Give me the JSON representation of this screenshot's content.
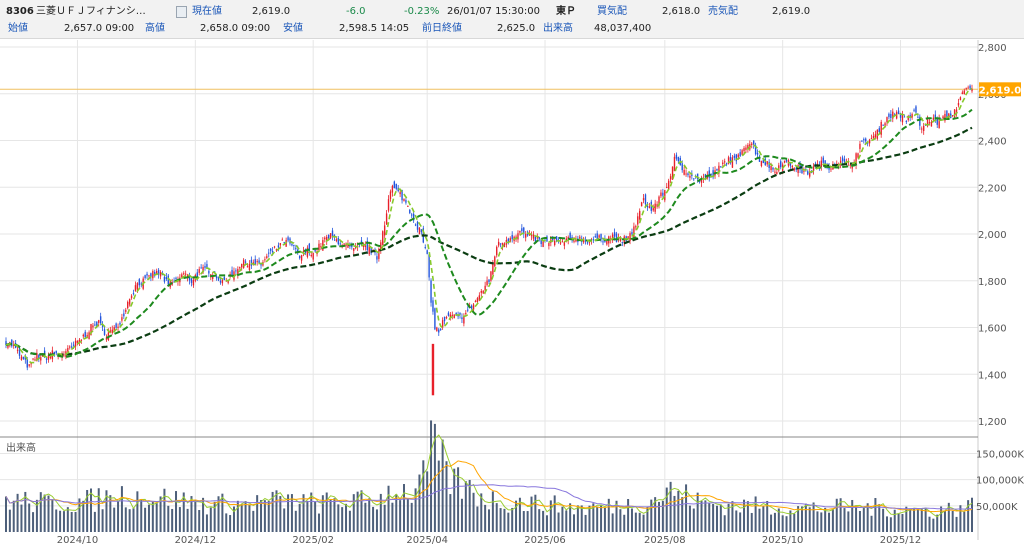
{
  "header": {
    "code": "8306",
    "name": "三菱ＵＦＪフィナンシ…",
    "current_label": "現在値",
    "current_value": "2,619.0",
    "change": "-6.0",
    "change_pct": "-0.23%",
    "datetime": "26/01/07  15:30:00",
    "market": "東Ｐ",
    "bid_label": "買気配",
    "bid_value": "2,618.0",
    "ask_label": "売気配",
    "ask_value": "2,619.0",
    "open_label": "始値",
    "open_value": "2,657.0  09:00",
    "high_label": "高値",
    "high_value": "2,658.0  09:00",
    "low_label": "安値",
    "low_value": "2,598.5  14:05",
    "prev_close_label": "前日終値",
    "prev_close_value": "2,625.0",
    "volume_label": "出来高",
    "volume_value": "48,037,400"
  },
  "chart_data": {
    "type": "candlestick",
    "price_axis": {
      "ylim": [
        1200,
        2800
      ],
      "ticks": [
        "1,200",
        "1,400",
        "1,600",
        "1,800",
        "2,000",
        "2,200",
        "2,400",
        "2,600",
        "2,800"
      ]
    },
    "current_price_label": "2,619.0",
    "current_price": 2619,
    "volume_panel_title": "出来高",
    "volume_axis": {
      "ylim": [
        0,
        170000
      ],
      "ticks": [
        "50,000K",
        "100,000K",
        "150,000K"
      ]
    },
    "x_tick_labels": [
      "2024/10",
      "2024/12",
      "2025/02",
      "2025/04",
      "2025/06",
      "2025/08",
      "2025/10",
      "2025/12"
    ],
    "x_tick_days": [
      37,
      98,
      159,
      218,
      279,
      341,
      402,
      463
    ],
    "last_day": 500,
    "price_anchors": [
      [
        0,
        1540
      ],
      [
        4,
        1520
      ],
      [
        8,
        1470
      ],
      [
        12,
        1430
      ],
      [
        16,
        1480
      ],
      [
        20,
        1470
      ],
      [
        24,
        1490
      ],
      [
        28,
        1480
      ],
      [
        32,
        1500
      ],
      [
        36,
        1530
      ],
      [
        40,
        1560
      ],
      [
        44,
        1600
      ],
      [
        48,
        1620
      ],
      [
        52,
        1570
      ],
      [
        56,
        1590
      ],
      [
        60,
        1640
      ],
      [
        64,
        1730
      ],
      [
        68,
        1790
      ],
      [
        72,
        1800
      ],
      [
        76,
        1830
      ],
      [
        80,
        1830
      ],
      [
        84,
        1780
      ],
      [
        88,
        1800
      ],
      [
        92,
        1830
      ],
      [
        96,
        1800
      ],
      [
        100,
        1840
      ],
      [
        104,
        1850
      ],
      [
        108,
        1830
      ],
      [
        112,
        1790
      ],
      [
        116,
        1820
      ],
      [
        120,
        1860
      ],
      [
        124,
        1880
      ],
      [
        128,
        1870
      ],
      [
        132,
        1870
      ],
      [
        136,
        1910
      ],
      [
        140,
        1940
      ],
      [
        144,
        1970
      ],
      [
        148,
        1950
      ],
      [
        152,
        1900
      ],
      [
        156,
        1930
      ],
      [
        160,
        1920
      ],
      [
        164,
        1970
      ],
      [
        168,
        1990
      ],
      [
        172,
        1970
      ],
      [
        176,
        1950
      ],
      [
        180,
        1930
      ],
      [
        184,
        1950
      ],
      [
        188,
        1940
      ],
      [
        192,
        1900
      ],
      [
        196,
        2050
      ],
      [
        198,
        2150
      ],
      [
        200,
        2200
      ],
      [
        204,
        2170
      ],
      [
        208,
        2120
      ],
      [
        212,
        2050
      ],
      [
        215,
        2000
      ],
      [
        218,
        1900
      ],
      [
        220,
        1720
      ],
      [
        222,
        1600
      ],
      [
        224,
        1580
      ],
      [
        226,
        1620
      ],
      [
        230,
        1650
      ],
      [
        234,
        1640
      ],
      [
        238,
        1660
      ],
      [
        242,
        1700
      ],
      [
        246,
        1750
      ],
      [
        250,
        1800
      ],
      [
        254,
        1950
      ],
      [
        258,
        1970
      ],
      [
        262,
        1990
      ],
      [
        266,
        2010
      ],
      [
        270,
        1990
      ],
      [
        274,
        1980
      ],
      [
        278,
        1960
      ],
      [
        282,
        1970
      ],
      [
        286,
        1960
      ],
      [
        290,
        1970
      ],
      [
        294,
        1980
      ],
      [
        298,
        1980
      ],
      [
        302,
        1970
      ],
      [
        306,
        1980
      ],
      [
        310,
        1980
      ],
      [
        314,
        1990
      ],
      [
        318,
        1970
      ],
      [
        322,
        1980
      ],
      [
        326,
        2040
      ],
      [
        330,
        2150
      ],
      [
        334,
        2100
      ],
      [
        338,
        2150
      ],
      [
        342,
        2200
      ],
      [
        346,
        2320
      ],
      [
        350,
        2280
      ],
      [
        354,
        2260
      ],
      [
        358,
        2230
      ],
      [
        362,
        2240
      ],
      [
        366,
        2250
      ],
      [
        370,
        2290
      ],
      [
        374,
        2320
      ],
      [
        378,
        2310
      ],
      [
        382,
        2380
      ],
      [
        386,
        2390
      ],
      [
        390,
        2320
      ],
      [
        394,
        2300
      ],
      [
        398,
        2270
      ],
      [
        402,
        2310
      ],
      [
        406,
        2300
      ],
      [
        410,
        2280
      ],
      [
        414,
        2260
      ],
      [
        418,
        2280
      ],
      [
        422,
        2300
      ],
      [
        426,
        2290
      ],
      [
        430,
        2310
      ],
      [
        434,
        2300
      ],
      [
        438,
        2300
      ],
      [
        442,
        2380
      ],
      [
        446,
        2400
      ],
      [
        450,
        2420
      ],
      [
        454,
        2480
      ],
      [
        458,
        2510
      ],
      [
        462,
        2520
      ],
      [
        466,
        2480
      ],
      [
        470,
        2530
      ],
      [
        474,
        2450
      ],
      [
        478,
        2490
      ],
      [
        482,
        2480
      ],
      [
        486,
        2500
      ],
      [
        490,
        2510
      ],
      [
        494,
        2580
      ],
      [
        497,
        2620
      ],
      [
        500,
        2619
      ]
    ],
    "volume_anchors": [
      [
        0,
        62
      ],
      [
        20,
        55
      ],
      [
        40,
        58
      ],
      [
        60,
        70
      ],
      [
        80,
        65
      ],
      [
        100,
        55
      ],
      [
        120,
        52
      ],
      [
        140,
        60
      ],
      [
        160,
        55
      ],
      [
        180,
        58
      ],
      [
        192,
        60
      ],
      [
        200,
        82
      ],
      [
        210,
        75
      ],
      [
        216,
        100
      ],
      [
        220,
        160
      ],
      [
        224,
        140
      ],
      [
        230,
        100
      ],
      [
        240,
        80
      ],
      [
        250,
        62
      ],
      [
        270,
        55
      ],
      [
        300,
        45
      ],
      [
        330,
        55
      ],
      [
        345,
        80
      ],
      [
        360,
        55
      ],
      [
        380,
        50
      ],
      [
        400,
        48
      ],
      [
        420,
        45
      ],
      [
        440,
        48
      ],
      [
        460,
        45
      ],
      [
        480,
        40
      ],
      [
        500,
        50
      ]
    ],
    "ma_short_period": 5,
    "ma_mid_period": 25,
    "ma_long_period": 75
  }
}
